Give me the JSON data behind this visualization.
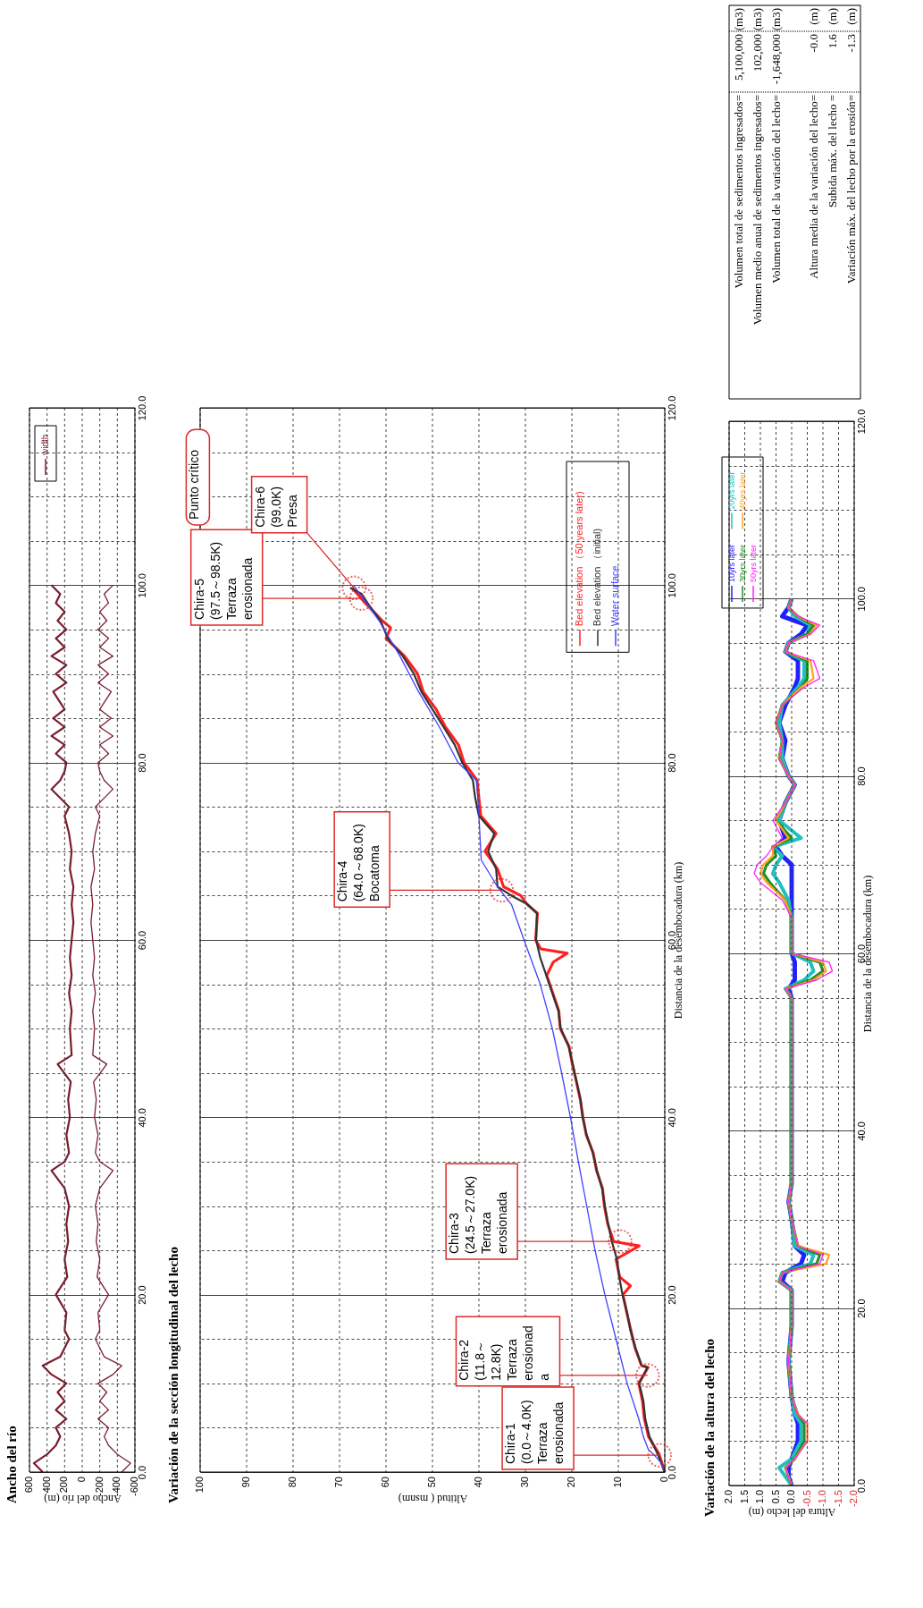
{
  "chart_data": [
    {
      "type": "line",
      "title": "Ancho del río",
      "xlabel": "Ancho del río (m)",
      "series": [
        {
          "name": "width",
          "color": "#7b1c2e",
          "x": [
            450,
            550,
            400,
            300,
            250,
            300,
            180,
            300,
            200,
            280,
            180,
            350,
            450,
            250,
            200,
            150,
            200,
            180,
            300,
            170,
            200,
            160,
            180,
            150,
            200,
            350,
            200,
            150,
            180,
            140,
            160,
            130,
            280,
            120,
            140,
            120,
            150,
            120,
            140,
            120,
            100,
            120,
            100,
            140,
            120,
            150,
            200,
            150,
            250,
            350,
            250,
            200,
            180,
            300,
            200,
            350,
            200,
            330,
            200,
            330,
            180,
            300,
            180,
            350,
            200,
            300,
            180,
            280,
            200,
            300,
            250,
            350
          ],
          "values": [
            0,
            1,
            2,
            3,
            4,
            5,
            6,
            7,
            8,
            9,
            10,
            11,
            12,
            13,
            14,
            15,
            16,
            18,
            20,
            22,
            24,
            26,
            28,
            30,
            32,
            34,
            35,
            36,
            38,
            40,
            42,
            44,
            46,
            47,
            50,
            52,
            54,
            56,
            58,
            60,
            62,
            64,
            66,
            68,
            70,
            72,
            74,
            75,
            76,
            77,
            78,
            79,
            80,
            81,
            82,
            83,
            84,
            85,
            86,
            88,
            89,
            90,
            91,
            92,
            93,
            94,
            95,
            96,
            97,
            98,
            99,
            100
          ]
        },
        {
          "color": "#7b1c2e",
          "x": [
            -450,
            -550,
            -400,
            -300,
            -250,
            -300,
            -180,
            -300,
            -200,
            -280,
            -180,
            -350,
            -450,
            -250,
            -200,
            -150,
            -200,
            -180,
            -300,
            -170,
            -200,
            -160,
            -180,
            -150,
            -200,
            -350,
            -200,
            -150,
            -180,
            -140,
            -160,
            -130,
            -280,
            -120,
            -140,
            -120,
            -150,
            -120,
            -140,
            -120,
            -100,
            -120,
            -100,
            -140,
            -120,
            -150,
            -200,
            -150,
            -250,
            -350,
            -250,
            -200,
            -180,
            -300,
            -200,
            -350,
            -200,
            -330,
            -200,
            -330,
            -180,
            -300,
            -180,
            -350,
            -200,
            -300,
            -180,
            -280,
            -200,
            -300,
            -250,
            -350
          ],
          "values": [
            0,
            1,
            2,
            3,
            4,
            5,
            6,
            7,
            8,
            9,
            10,
            11,
            12,
            13,
            14,
            15,
            16,
            18,
            20,
            22,
            24,
            26,
            28,
            30,
            32,
            34,
            35,
            36,
            38,
            40,
            42,
            44,
            46,
            47,
            50,
            52,
            54,
            56,
            58,
            60,
            62,
            64,
            66,
            68,
            70,
            72,
            74,
            75,
            76,
            77,
            78,
            79,
            80,
            81,
            82,
            83,
            84,
            85,
            86,
            88,
            89,
            90,
            91,
            92,
            93,
            94,
            95,
            96,
            97,
            98,
            99,
            100
          ]
        }
      ],
      "xlim": [
        600,
        -600
      ],
      "xticks": [
        600,
        400,
        200,
        0,
        -200,
        -400,
        -600
      ],
      "ylim": [
        0,
        120
      ],
      "yticks": [
        {
          "value": 0,
          "label": "0.0"
        },
        {
          "value": 5,
          "label": null
        },
        {
          "value": 10,
          "label": null
        },
        {
          "value": 15,
          "label": null
        },
        {
          "value": 20,
          "label": "20.0"
        },
        {
          "value": 25,
          "label": null
        },
        {
          "value": 30,
          "label": null
        },
        {
          "value": 35,
          "label": null
        },
        {
          "value": 40,
          "label": "40.0"
        },
        {
          "value": 45,
          "label": null
        },
        {
          "value": 50,
          "label": null
        },
        {
          "value": 55,
          "label": null
        },
        {
          "value": 60,
          "label": "60.0"
        },
        {
          "value": 65,
          "label": null
        },
        {
          "value": 70,
          "label": null
        },
        {
          "value": 75,
          "label": null
        },
        {
          "value": 80,
          "label": "80.0"
        },
        {
          "value": 85,
          "label": null
        },
        {
          "value": 90,
          "label": null
        },
        {
          "value": 95,
          "label": null
        },
        {
          "value": 100,
          "label": "100.0"
        },
        {
          "value": 105,
          "label": null
        },
        {
          "value": 110,
          "label": null
        },
        {
          "value": 115,
          "label": null
        },
        {
          "value": 120,
          "label": "120.0"
        }
      ],
      "grid": true,
      "legend": "top left"
    },
    {
      "type": "line",
      "title": "Variación de la sección longitudinal del lecho",
      "xlabel": "Altitud ( msnm)",
      "ylabel": "Distancia de la desembocadura (km)",
      "series": [
        {
          "name": "Bed elevation （50 years later)",
          "color": "#ff2020",
          "x": [
            0,
            1.2,
            3.5,
            4.4,
            4.8,
            5.6,
            3.6,
            5,
            6.4,
            7.3,
            8.2,
            9,
            7.4,
            9.7,
            10.5,
            5.5,
            11,
            12.3,
            13,
            13.4,
            14.7,
            15.4,
            16.9,
            17.6,
            18.2,
            19,
            19.9,
            20.6,
            22.5,
            22.8,
            24.1,
            25.4,
            24,
            21,
            26.7,
            27.8,
            27.4,
            29.6,
            31,
            34.7,
            36,
            38.7,
            36.3,
            39.6,
            40,
            40.4,
            43.2,
            44.4,
            47.2,
            49.2,
            52,
            53.2,
            56,
            60,
            59,
            60.8,
            64.5,
            67.3
          ],
          "values": [
            0,
            2,
            4,
            6,
            8,
            10,
            11.8,
            12,
            14,
            16,
            18,
            20,
            21,
            22,
            24,
            25.5,
            26,
            28,
            30,
            32,
            34,
            36,
            38,
            40,
            42,
            44,
            46,
            48,
            50,
            52,
            54,
            56,
            57.5,
            58.5,
            59,
            60,
            63,
            64,
            65,
            66,
            68,
            70,
            72,
            74,
            76,
            78,
            80,
            82,
            84,
            86,
            88,
            90,
            92,
            94,
            95.2,
            96,
            98,
            99.7
          ]
        },
        {
          "name": "Bed elevation （initial)",
          "color": "#333333",
          "x": [
            0,
            1.5,
            3.3,
            4.2,
            4.6,
            5.5,
            3.7,
            5,
            6.3,
            7.4,
            8.1,
            9.1,
            9.8,
            10.3,
            11.4,
            12.2,
            12.9,
            13.5,
            14.6,
            15.5,
            16.8,
            17.7,
            18.1,
            19,
            19.8,
            20.7,
            22.4,
            22.9,
            24.2,
            25.5,
            26.8,
            27.7,
            27.5,
            29.5,
            33,
            36,
            36.3,
            38,
            36.7,
            40,
            40.8,
            41.3,
            43.6,
            45.2,
            47.6,
            50,
            52.4,
            54,
            56.4,
            59.6,
            61.2,
            64,
            65.2,
            67.7
          ],
          "values": [
            0,
            2,
            4,
            6,
            8,
            10,
            11.8,
            12,
            14,
            16,
            18,
            20,
            22,
            24,
            26,
            28,
            30,
            32,
            34,
            36,
            38,
            40,
            42,
            44,
            46,
            48,
            50,
            52,
            54,
            56,
            58,
            60,
            63,
            64,
            65,
            66,
            68,
            70,
            72,
            74,
            76,
            78,
            80,
            82,
            84,
            86,
            88,
            90,
            92,
            94,
            96,
            98,
            99,
            99.7
          ]
        },
        {
          "name": "Water surface",
          "color": "#4040ff",
          "x": [
            0,
            0.7,
            2.4,
            3.5,
            4.6,
            5.6,
            8.1,
            10.5,
            12.9,
            15,
            16.8,
            18.6,
            20.3,
            22.2,
            24.2,
            26.8,
            30.3,
            33,
            36,
            39.5,
            40,
            40.5,
            44.5,
            48.5,
            53,
            57,
            61.5,
            67
          ],
          "values": [
            0,
            1,
            2,
            2.5,
            4,
            6,
            10,
            15,
            20,
            25,
            30,
            35,
            40,
            45,
            50,
            55,
            60,
            64,
            66,
            69,
            74,
            78,
            80,
            84,
            88,
            92,
            96,
            100
          ]
        }
      ],
      "xlim": [
        100,
        0
      ],
      "xticks": [
        100,
        90,
        80,
        70,
        60,
        50,
        40,
        30,
        20,
        10,
        0
      ],
      "ylim": [
        0,
        120
      ],
      "yticks": [
        {
          "value": 0,
          "label": "0.0"
        },
        {
          "value": 5,
          "label": null
        },
        {
          "value": 10,
          "label": null
        },
        {
          "value": 15,
          "label": null
        },
        {
          "value": 20,
          "label": "20.0"
        },
        {
          "value": 25,
          "label": null
        },
        {
          "value": 30,
          "label": null
        },
        {
          "value": 35,
          "label": null
        },
        {
          "value": 40,
          "label": "40.0"
        },
        {
          "value": 45,
          "label": null
        },
        {
          "value": 50,
          "label": null
        },
        {
          "value": 55,
          "label": null
        },
        {
          "value": 60,
          "label": "60.0"
        },
        {
          "value": 65,
          "label": null
        },
        {
          "value": 70,
          "label": null
        },
        {
          "value": 75,
          "label": null
        },
        {
          "value": 80,
          "label": "80.0"
        },
        {
          "value": 85,
          "label": null
        },
        {
          "value": 90,
          "label": null
        },
        {
          "value": 95,
          "label": null
        },
        {
          "value": 100,
          "label": "100.0"
        },
        {
          "value": 105,
          "label": null
        },
        {
          "value": 110,
          "label": null
        },
        {
          "value": 115,
          "label": null
        },
        {
          "value": 120,
          "label": "120.0"
        }
      ],
      "grid": true,
      "legend": "top right",
      "annotations": [
        {
          "text": "Chira-1\n(0.0～4.0K)\nTerraza\nerosionada",
          "x": 1.1,
          "y": 1.9
        },
        {
          "text": "Chira-2\n(11.8～\n12.8K)\nTerraza\nerosionad\na",
          "x": 3.7,
          "y": 10.9
        },
        {
          "text": "Chira-3\n(24.5～27.0K)\nTerraza\nerosionada",
          "x": 9.6,
          "y": 26
        },
        {
          "text": "Chira-4\n(64.0～68.0K)\nBocatoma",
          "x": 35.1,
          "y": 65.6
        },
        {
          "text": "Chira-5\n(97.5～98.5K)\nTerraza\nerosionada",
          "x": 65.3,
          "y": 98.5
        },
        {
          "text": "Chira-6\n(99.0K)\nPresa",
          "x": 66.9,
          "y": 99.7
        },
        "Punto crítico"
      ]
    },
    {
      "type": "other",
      "annotations": [
        "Volumen total de sedimentos ingresados=",
        "5,100,000",
        "(m3)",
        "Volumen medio anual de sedimentos ingresados=",
        "102,000",
        "(m3)",
        "Volumen total de la variación del lecho=",
        "-1,648,000",
        "(m3)",
        "Altura media de la variación del lecho=",
        "-0.0",
        "(m)",
        "Subida máx.  del lecho =",
        "1.6",
        "(m)",
        "Variación máx. del lecho por la erosión=",
        "-1.3",
        "(m)"
      ]
    },
    {
      "type": "line",
      "title": "Variación de la altura del lecho",
      "xlabel": "Altura del lecho (m)",
      "ylabel": "Distancia de la desembocadura (km)",
      "series": [
        {
          "name": "10yrs later",
          "color": "#2020ff",
          "x": [
            0,
            0.1,
            0.1,
            0,
            -0.2,
            -0.2,
            -0.1,
            0,
            0.1,
            0,
            0,
            0,
            0.3,
            0.2,
            -0.3,
            -0.4,
            -0.1,
            0,
            0.1,
            0,
            0,
            0,
            0,
            0.1,
            -0.1,
            -0.1,
            -0.1,
            0,
            0,
            0,
            0,
            0,
            0,
            0.3,
            0.5,
            0.2,
            0.4,
            0.2,
            -0.1,
            0.1,
            0.3,
            0.2,
            0.4,
            0.2,
            -0.1,
            -0.2,
            -0.2,
            0.2,
            0.1,
            -0.3,
            -0.5,
            0.3,
            0.1,
            0
          ],
          "values": [
            0,
            1,
            2,
            3,
            5,
            7,
            8,
            10,
            14,
            18,
            20,
            22,
            23,
            24,
            25,
            26,
            27,
            30,
            32,
            34,
            40,
            50,
            55,
            56,
            57,
            58,
            59,
            60,
            64,
            66,
            68,
            69,
            70,
            71,
            72,
            73,
            75,
            77,
            79,
            80,
            82,
            84,
            86,
            88,
            90,
            91,
            93,
            94,
            95,
            96,
            97,
            98,
            99,
            100
          ]
        },
        {
          "name": "20yrs later",
          "color": "#20c0c0",
          "x": [
            0,
            0.2,
            0.4,
            0,
            -0.3,
            -0.3,
            -0.1,
            0,
            0.1,
            0,
            0,
            0,
            0.4,
            0.3,
            -0.6,
            -0.7,
            -0.1,
            0,
            0.1,
            0,
            0,
            0,
            0,
            0.2,
            -0.4,
            -0.7,
            -0.6,
            0,
            0,
            0.1,
            0.4,
            0.6,
            0.5,
            0.3,
            0.6,
            -0.3,
            0.4,
            0.2,
            -0.1,
            0.1,
            0.3,
            0.3,
            0.4,
            0.3,
            -0.2,
            -0.4,
            -0.4,
            0.2,
            0.1,
            -0.5,
            -0.6,
            -0.1,
            0.1,
            0
          ],
          "values": [
            0,
            1,
            2,
            3,
            5,
            7,
            8,
            10,
            14,
            18,
            20,
            22,
            23,
            24,
            25,
            26,
            27,
            30,
            32,
            34,
            40,
            50,
            55,
            56,
            57,
            58,
            59,
            60,
            64,
            66,
            68,
            69,
            70,
            71,
            72,
            73,
            75,
            77,
            79,
            80,
            82,
            84,
            86,
            88,
            90,
            91,
            93,
            94,
            95,
            96,
            97,
            98,
            99,
            100
          ]
        },
        {
          "name": "30yrs later",
          "color": "#209020",
          "x": [
            0,
            0.1,
            0.2,
            -0.1,
            -0.4,
            -0.4,
            -0.2,
            0,
            0.1,
            0,
            0,
            0,
            0.4,
            0.3,
            -0.8,
            -0.9,
            -0.2,
            0,
            0.1,
            0,
            0,
            0,
            0,
            0.2,
            -0.6,
            -1.0,
            -0.9,
            0,
            0,
            0.2,
            0.7,
            0.9,
            0.8,
            0.5,
            0.6,
            0,
            0.5,
            0.2,
            -0.1,
            0.1,
            0.4,
            0.3,
            0.5,
            0.3,
            -0.3,
            -0.5,
            -0.5,
            0.2,
            0.1,
            -0.5,
            -0.7,
            -0.2,
            0.1,
            0
          ],
          "values": [
            0,
            1,
            2,
            3,
            5,
            7,
            8,
            10,
            14,
            18,
            20,
            22,
            23,
            24,
            25,
            26,
            27,
            30,
            32,
            34,
            40,
            50,
            55,
            56,
            57,
            58,
            59,
            60,
            64,
            66,
            68,
            69,
            70,
            71,
            72,
            73,
            75,
            77,
            79,
            80,
            82,
            84,
            86,
            88,
            90,
            91,
            93,
            94,
            95,
            96,
            97,
            98,
            99,
            100
          ]
        },
        {
          "name": "40yrs later",
          "color": "#ffa020",
          "x": [
            0,
            0.1,
            0.2,
            -0.1,
            -0.5,
            -0.5,
            -0.2,
            0,
            0.1,
            0,
            0,
            0,
            0.4,
            0.3,
            -1.1,
            -1.2,
            -0.2,
            0,
            0.1,
            0,
            0,
            0,
            0,
            0.2,
            -0.7,
            -1.1,
            -1.0,
            0,
            0,
            0.2,
            0.8,
            1.0,
            0.9,
            0.6,
            0.6,
            0.1,
            0.5,
            0.2,
            -0.1,
            0.1,
            0.4,
            0.3,
            0.5,
            0.3,
            -0.3,
            -0.7,
            -0.6,
            0.2,
            0.1,
            -0.6,
            -0.8,
            -0.2,
            0.1,
            0
          ],
          "values": [
            0,
            1,
            2,
            3,
            5,
            7,
            8,
            10,
            14,
            18,
            20,
            22,
            23,
            24,
            25,
            26,
            27,
            30,
            32,
            34,
            40,
            50,
            55,
            56,
            57,
            58,
            59,
            60,
            64,
            66,
            68,
            69,
            70,
            71,
            72,
            73,
            75,
            77,
            79,
            80,
            82,
            84,
            86,
            88,
            90,
            91,
            93,
            94,
            95,
            96,
            97,
            98,
            99,
            100
          ]
        },
        {
          "name": "50yrs later",
          "color": "#ff20ff",
          "x": [
            0,
            0.1,
            0.2,
            -0.1,
            -0.5,
            -0.5,
            -0.2,
            0,
            0.1,
            0,
            0,
            0,
            0.4,
            0.3,
            -0.9,
            -1.0,
            -0.2,
            0,
            0.1,
            0,
            0,
            0,
            0,
            0.2,
            -0.8,
            -1.3,
            -1.2,
            0,
            0,
            0.3,
            1.0,
            1.2,
            1.1,
            0.8,
            0.6,
            0.3,
            0.6,
            0.2,
            -0.1,
            0.1,
            0.4,
            0.3,
            0.5,
            0.3,
            -0.4,
            -0.9,
            -0.7,
            0.2,
            0.1,
            -0.6,
            -0.9,
            -0.2,
            0.1,
            0
          ],
          "values": [
            0,
            1,
            2,
            3,
            5,
            7,
            8,
            10,
            14,
            18,
            20,
            22,
            23,
            24,
            25,
            26,
            27,
            30,
            32,
            34,
            40,
            50,
            55,
            56,
            57,
            58,
            59,
            60,
            64,
            66,
            68,
            69,
            70,
            71,
            72,
            73,
            75,
            77,
            79,
            80,
            82,
            84,
            86,
            88,
            90,
            91,
            93,
            94,
            95,
            96,
            97,
            98,
            99,
            100
          ]
        }
      ],
      "xlim": [
        2,
        -2
      ],
      "xticks": [
        {
          "value": 2,
          "label": "2.0"
        },
        {
          "value": 1.5,
          "label": "1.5"
        },
        {
          "value": 1,
          "label": "1.0"
        },
        {
          "value": 0.5,
          "label": "0.5"
        },
        {
          "value": 0,
          "label": "0.0"
        },
        {
          "value": -0.5,
          "label": "-0.5"
        },
        {
          "value": -1,
          "label": "-1.0"
        },
        {
          "value": -1.5,
          "label": "-1.5"
        },
        {
          "value": -2,
          "label": "-2.0"
        }
      ],
      "ylim": [
        0,
        120
      ],
      "yticks": [
        {
          "value": 0,
          "label": "0.0"
        },
        {
          "value": 5,
          "label": null
        },
        {
          "value": 10,
          "label": null
        },
        {
          "value": 15,
          "label": null
        },
        {
          "value": 20,
          "label": "20.0"
        },
        {
          "value": 25,
          "label": null
        },
        {
          "value": 30,
          "label": null
        },
        {
          "value": 35,
          "label": null
        },
        {
          "value": 40,
          "label": "40.0"
        },
        {
          "value": 45,
          "label": null
        },
        {
          "value": 50,
          "label": null
        },
        {
          "value": 55,
          "label": null
        },
        {
          "value": 60,
          "label": "60.0"
        },
        {
          "value": 65,
          "label": null
        },
        {
          "value": 70,
          "label": null
        },
        {
          "value": 75,
          "label": null
        },
        {
          "value": 80,
          "label": "80.0"
        },
        {
          "value": 85,
          "label": null
        },
        {
          "value": 90,
          "label": null
        },
        {
          "value": 95,
          "label": null
        },
        {
          "value": 100,
          "label": "100.0"
        },
        {
          "value": 105,
          "label": null
        },
        {
          "value": 110,
          "label": null
        },
        {
          "value": 115,
          "label": null
        },
        {
          "value": 120,
          "label": "120.0"
        }
      ],
      "grid": true,
      "legend": "top left"
    }
  ]
}
